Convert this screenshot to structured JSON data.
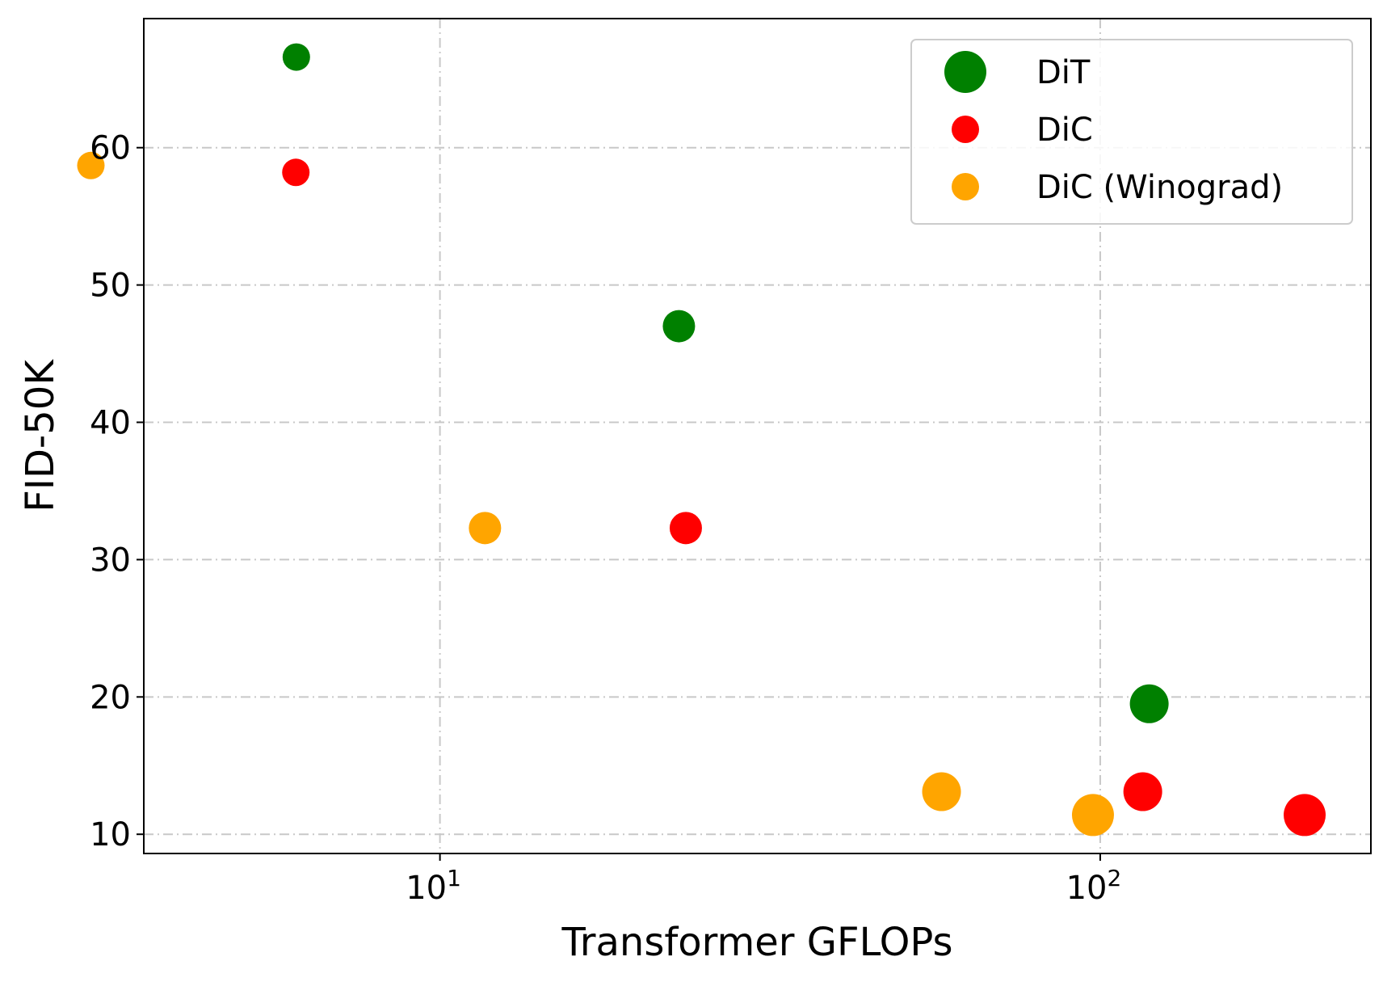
{
  "chart_data": {
    "type": "scatter",
    "title": "",
    "xlabel": "Transformer GFLOPs",
    "ylabel": "FID-50K",
    "x_scale": "log",
    "xlim": [
      3.56,
      257
    ],
    "ylim": [
      8.6,
      69.4
    ],
    "grid": true,
    "legend_position": "top-right",
    "x_ticks": [
      {
        "value": 10,
        "label": "10",
        "exponent": "1"
      },
      {
        "value": 100,
        "label": "10",
        "exponent": "2"
      }
    ],
    "y_ticks": [
      10,
      20,
      30,
      40,
      50,
      60
    ],
    "series": [
      {
        "name": "DiT",
        "color": "#008000",
        "points": [
          {
            "x": 6.06,
            "y": 66.6,
            "size": "small"
          },
          {
            "x": 23.01,
            "y": 47.0,
            "size": "medium"
          },
          {
            "x": 118.64,
            "y": 19.5,
            "size": "large"
          }
        ]
      },
      {
        "name": "DiC",
        "color": "#ff0000",
        "points": [
          {
            "x": 6.05,
            "y": 58.2,
            "size": "small"
          },
          {
            "x": 23.57,
            "y": 32.3,
            "size": "medium"
          },
          {
            "x": 116.0,
            "y": 13.1,
            "size": "large"
          },
          {
            "x": 204.0,
            "y": 11.4,
            "size": "xlarge"
          }
        ]
      },
      {
        "name": "DiC (Winograd)",
        "color": "#ffa500",
        "points": [
          {
            "x": 2.96,
            "y": 58.7,
            "size": "small"
          },
          {
            "x": 11.7,
            "y": 32.3,
            "size": "medium"
          },
          {
            "x": 57.5,
            "y": 13.1,
            "size": "large"
          },
          {
            "x": 97.5,
            "y": 11.4,
            "size": "xlarge"
          }
        ]
      }
    ]
  }
}
